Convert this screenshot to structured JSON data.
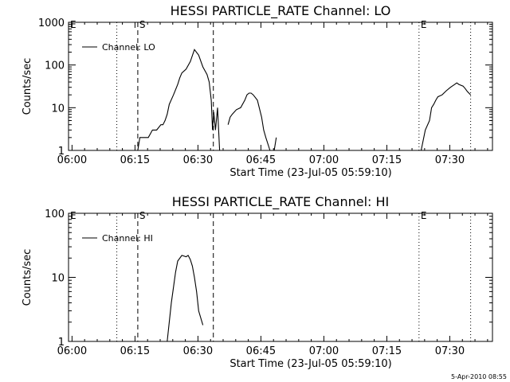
{
  "chart_data": [
    {
      "type": "line",
      "title": "HESSI PARTICLE_RATE Channel: LO",
      "xlabel": "Start Time (23-Jul-05 05:59:10)",
      "ylabel": "Counts/sec",
      "xlim_minutes": [
        0,
        101
      ],
      "ylim": [
        1,
        1000
      ],
      "yscale": "log",
      "xticks": [
        "06:00",
        "06:15",
        "06:30",
        "06:45",
        "07:00",
        "07:15",
        "07:30"
      ],
      "yticks": [
        "1",
        "10",
        "100",
        "1000"
      ],
      "legend": {
        "label": "Channel: LO",
        "position": "top-left"
      },
      "markers": [
        {
          "label": "E",
          "minute": 0,
          "style": "dotted"
        },
        {
          "label": "",
          "minute": 11.5,
          "style": "dotted"
        },
        {
          "label": "S",
          "minute": 16.5,
          "style": "dashed"
        },
        {
          "label": "",
          "minute": 34.5,
          "style": "dashed"
        },
        {
          "label": "E",
          "minute": 83.5,
          "style": "dotted"
        },
        {
          "label": "",
          "minute": 95.8,
          "style": "dotted"
        }
      ],
      "series": [
        {
          "name": "Channel: LO",
          "segments": [
            {
              "x": [
                16.5,
                17,
                18,
                19,
                20,
                21,
                22,
                22.5,
                23,
                23.5,
                24,
                25,
                26,
                26.5,
                27,
                28,
                29,
                30,
                31,
                32,
                33,
                33.5,
                34,
                34.3,
                34.6,
                35,
                35.5,
                36
              ],
              "y": [
                1,
                2,
                2,
                2,
                3,
                3,
                4,
                4,
                5,
                7,
                12,
                20,
                35,
                50,
                65,
                80,
                120,
                230,
                170,
                90,
                60,
                40,
                15,
                3,
                8,
                3,
                10,
                1
              ]
            },
            {
              "x": [
                38,
                38.5,
                39,
                40,
                41,
                42,
                42.5,
                43,
                43.5,
                44,
                45,
                46,
                46.5,
                47,
                48
              ],
              "y": [
                4,
                6,
                7,
                9,
                10,
                15,
                20,
                22,
                22,
                20,
                15,
                6,
                3,
                2,
                1
              ]
            },
            {
              "x": [
                49,
                49.5
              ],
              "y": [
                1,
                2
              ]
            },
            {
              "x": [
                84,
                85,
                86,
                86.5,
                87,
                87.5,
                88,
                89,
                90,
                91,
                92,
                92.5,
                93,
                94,
                94.5,
                95,
                95.8
              ],
              "y": [
                1,
                3,
                5,
                10,
                12,
                15,
                18,
                20,
                25,
                30,
                35,
                38,
                35,
                32,
                28,
                24,
                20
              ]
            }
          ]
        }
      ]
    },
    {
      "type": "line",
      "title": "HESSI PARTICLE_RATE Channel: HI",
      "xlabel": "Start Time (23-Jul-05 05:59:10)",
      "ylabel": "Counts/sec",
      "xlim_minutes": [
        0,
        101
      ],
      "ylim": [
        1,
        100
      ],
      "yscale": "log",
      "xticks": [
        "06:00",
        "06:15",
        "06:30",
        "06:45",
        "07:00",
        "07:15",
        "07:30"
      ],
      "yticks": [
        "1",
        "10",
        "100"
      ],
      "legend": {
        "label": "Channel: HI",
        "position": "top-left"
      },
      "markers": [
        {
          "label": "E",
          "minute": 0,
          "style": "dotted"
        },
        {
          "label": "",
          "minute": 11.5,
          "style": "dotted"
        },
        {
          "label": "S",
          "minute": 16.5,
          "style": "dashed"
        },
        {
          "label": "",
          "minute": 34.5,
          "style": "dashed"
        },
        {
          "label": "E",
          "minute": 83.5,
          "style": "dotted"
        },
        {
          "label": "",
          "minute": 95.8,
          "style": "dotted"
        }
      ],
      "series": [
        {
          "name": "Channel: HI",
          "segments": [
            {
              "x": [
                23.5,
                24,
                24.5,
                25,
                25.5,
                26,
                27,
                28,
                28.5,
                29,
                29.5,
                30,
                30.5,
                31,
                32
              ],
              "y": [
                1,
                2,
                4,
                7,
                12,
                18,
                22,
                21,
                22,
                19,
                15,
                10,
                6,
                3,
                1.8
              ]
            }
          ]
        }
      ]
    }
  ],
  "footer": {
    "timestamp": "5-Apr-2010 08:55"
  }
}
